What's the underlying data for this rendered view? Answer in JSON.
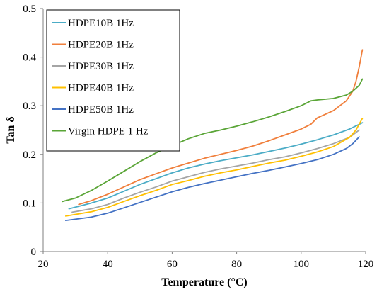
{
  "chart_data": {
    "type": "line",
    "title": "",
    "xlabel": "Temperature (°C)",
    "ylabel": "Tan δ",
    "xlim": [
      20,
      120
    ],
    "ylim": [
      0,
      0.5
    ],
    "xticks": [
      20,
      40,
      60,
      80,
      100,
      120
    ],
    "yticks": [
      0,
      0.1,
      0.2,
      0.3,
      0.4,
      0.5
    ],
    "ytick_labels": [
      "0",
      "0.1",
      "0.2",
      "0.3",
      "0.4",
      "0.5"
    ],
    "grid": false,
    "legend_position": "top-left",
    "series": [
      {
        "name": "HDPE10B 1Hz",
        "color": "#4bacc6",
        "points": [
          [
            28,
            0.088
          ],
          [
            35,
            0.1
          ],
          [
            40,
            0.11
          ],
          [
            45,
            0.124
          ],
          [
            50,
            0.138
          ],
          [
            55,
            0.15
          ],
          [
            60,
            0.162
          ],
          [
            65,
            0.172
          ],
          [
            70,
            0.18
          ],
          [
            75,
            0.187
          ],
          [
            80,
            0.193
          ],
          [
            85,
            0.199
          ],
          [
            90,
            0.206
          ],
          [
            95,
            0.213
          ],
          [
            100,
            0.221
          ],
          [
            105,
            0.23
          ],
          [
            110,
            0.24
          ],
          [
            115,
            0.252
          ],
          [
            119,
            0.265
          ]
        ]
      },
      {
        "name": "HDPE20B 1Hz",
        "color": "#f07f3c",
        "points": [
          [
            31,
            0.097
          ],
          [
            35,
            0.105
          ],
          [
            40,
            0.118
          ],
          [
            45,
            0.133
          ],
          [
            50,
            0.148
          ],
          [
            55,
            0.16
          ],
          [
            60,
            0.172
          ],
          [
            65,
            0.182
          ],
          [
            70,
            0.192
          ],
          [
            75,
            0.2
          ],
          [
            80,
            0.208
          ],
          [
            85,
            0.217
          ],
          [
            90,
            0.228
          ],
          [
            95,
            0.24
          ],
          [
            100,
            0.252
          ],
          [
            103,
            0.262
          ],
          [
            105,
            0.275
          ],
          [
            108,
            0.284
          ],
          [
            110,
            0.29
          ],
          [
            112,
            0.3
          ],
          [
            114,
            0.31
          ],
          [
            116,
            0.33
          ],
          [
            117,
            0.35
          ],
          [
            118,
            0.38
          ],
          [
            119,
            0.415
          ]
        ]
      },
      {
        "name": "HDPE30B 1Hz",
        "color": "#a5a5a5",
        "points": [
          [
            29,
            0.081
          ],
          [
            35,
            0.088
          ],
          [
            40,
            0.097
          ],
          [
            45,
            0.11
          ],
          [
            50,
            0.122
          ],
          [
            55,
            0.133
          ],
          [
            60,
            0.145
          ],
          [
            65,
            0.154
          ],
          [
            70,
            0.163
          ],
          [
            75,
            0.17
          ],
          [
            80,
            0.176
          ],
          [
            85,
            0.182
          ],
          [
            90,
            0.189
          ],
          [
            95,
            0.195
          ],
          [
            100,
            0.203
          ],
          [
            105,
            0.212
          ],
          [
            110,
            0.222
          ],
          [
            115,
            0.235
          ],
          [
            118,
            0.25
          ]
        ]
      },
      {
        "name": "HDPE40B 1Hz",
        "color": "#ffc000",
        "points": [
          [
            27,
            0.073
          ],
          [
            35,
            0.082
          ],
          [
            40,
            0.091
          ],
          [
            45,
            0.103
          ],
          [
            50,
            0.115
          ],
          [
            55,
            0.126
          ],
          [
            60,
            0.138
          ],
          [
            65,
            0.146
          ],
          [
            70,
            0.155
          ],
          [
            75,
            0.162
          ],
          [
            80,
            0.168
          ],
          [
            85,
            0.175
          ],
          [
            90,
            0.182
          ],
          [
            95,
            0.188
          ],
          [
            100,
            0.196
          ],
          [
            105,
            0.205
          ],
          [
            110,
            0.216
          ],
          [
            115,
            0.235
          ],
          [
            117,
            0.25
          ],
          [
            119,
            0.274
          ]
        ]
      },
      {
        "name": "HDPE50B 1Hz",
        "color": "#4472c4",
        "points": [
          [
            27,
            0.064
          ],
          [
            35,
            0.071
          ],
          [
            40,
            0.079
          ],
          [
            45,
            0.09
          ],
          [
            50,
            0.101
          ],
          [
            55,
            0.112
          ],
          [
            60,
            0.123
          ],
          [
            65,
            0.132
          ],
          [
            70,
            0.14
          ],
          [
            75,
            0.147
          ],
          [
            80,
            0.154
          ],
          [
            85,
            0.161
          ],
          [
            90,
            0.167
          ],
          [
            95,
            0.174
          ],
          [
            100,
            0.181
          ],
          [
            105,
            0.189
          ],
          [
            110,
            0.2
          ],
          [
            114,
            0.212
          ],
          [
            116,
            0.222
          ],
          [
            118,
            0.236
          ]
        ]
      },
      {
        "name": "Virgin HDPE 1 Hz",
        "color": "#5aa537",
        "points": [
          [
            26,
            0.103
          ],
          [
            30,
            0.11
          ],
          [
            35,
            0.126
          ],
          [
            40,
            0.145
          ],
          [
            45,
            0.165
          ],
          [
            50,
            0.185
          ],
          [
            55,
            0.203
          ],
          [
            60,
            0.218
          ],
          [
            65,
            0.232
          ],
          [
            70,
            0.243
          ],
          [
            75,
            0.25
          ],
          [
            80,
            0.258
          ],
          [
            85,
            0.267
          ],
          [
            90,
            0.277
          ],
          [
            95,
            0.288
          ],
          [
            100,
            0.3
          ],
          [
            103,
            0.31
          ],
          [
            105,
            0.312
          ],
          [
            110,
            0.315
          ],
          [
            114,
            0.322
          ],
          [
            116,
            0.33
          ],
          [
            118,
            0.342
          ],
          [
            119,
            0.355
          ]
        ]
      }
    ]
  }
}
